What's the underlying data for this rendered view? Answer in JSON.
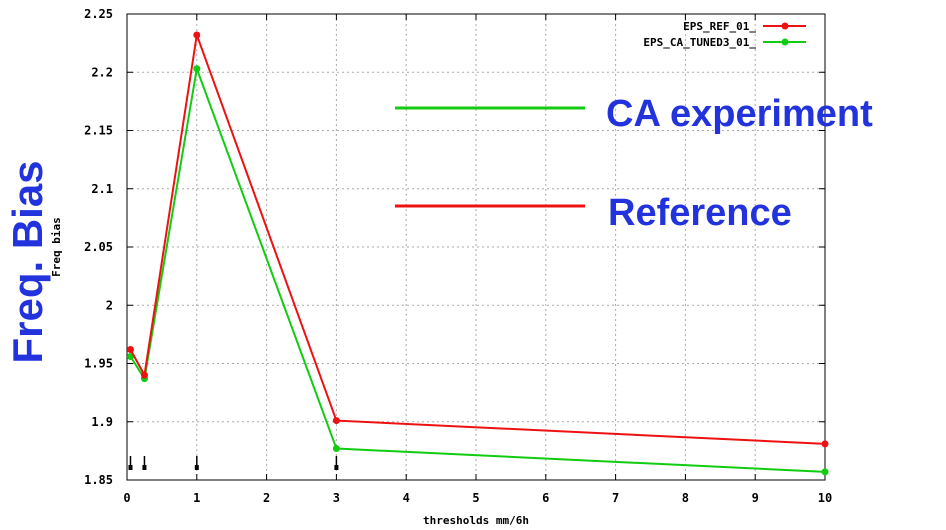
{
  "colors": {
    "ref": "#ee1111",
    "ca": "#11cc11",
    "overlay_text": "#2233dd",
    "grid": "#aaaaaa"
  },
  "chart_data": {
    "type": "line",
    "xlabel": "thresholds mm/6h",
    "ylabel": "Freq bias",
    "xlim": [
      0,
      10
    ],
    "ylim": [
      1.85,
      2.25
    ],
    "grid": true,
    "legend_position": "top-right",
    "x": [
      0.05,
      0.25,
      1,
      3,
      10
    ],
    "x_ticks": [
      "0",
      "1",
      "2",
      "3",
      "4",
      "5",
      "6",
      "7",
      "8",
      "9",
      "10"
    ],
    "y_ticks": [
      "1.85",
      "1.9",
      "1.95",
      "2",
      "2.05",
      "2.1",
      "2.15",
      "2.2",
      "2.25"
    ],
    "series": [
      {
        "name": "EPS_REF_01_",
        "values": [
          1.962,
          1.94,
          2.232,
          1.901,
          1.881
        ]
      },
      {
        "name": "EPS_CA_TUNED3_01_",
        "values": [
          1.956,
          1.937,
          2.203,
          1.877,
          1.857
        ]
      }
    ],
    "markers_x": [
      0.05,
      0.25,
      1,
      3
    ]
  },
  "overlay": {
    "ylabel_big": "Freq. Bias",
    "ca_label": "CA experiment",
    "ref_label": "Reference"
  }
}
